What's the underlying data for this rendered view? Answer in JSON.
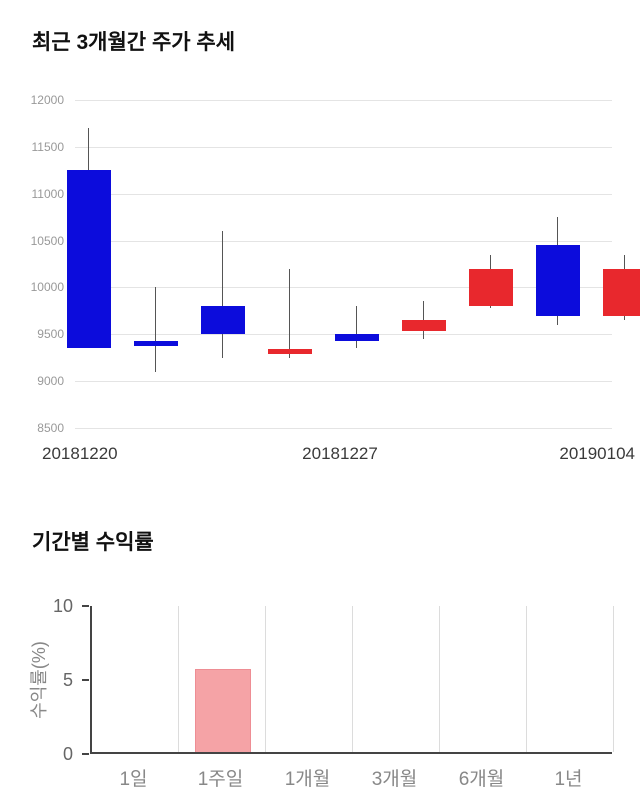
{
  "chart_data": [
    {
      "type": "candlestick",
      "title": "최근 3개월간 주가 추세",
      "ylim": [
        8500,
        12000
      ],
      "y_ticks": [
        8500,
        9000,
        9500,
        10000,
        10500,
        11000,
        11500,
        12000
      ],
      "x_tick_labels": [
        "20181220",
        "20181227",
        "20190104"
      ],
      "up_color": "#e8282d",
      "down_color": "#0c0cdc",
      "wick_color": "#555555",
      "grid": "horizontal",
      "candles": [
        {
          "open": 11250,
          "high": 11700,
          "low": 9350,
          "close": 9350
        },
        {
          "open": 9430,
          "high": 10000,
          "low": 9100,
          "close": 9380
        },
        {
          "open": 9800,
          "high": 10600,
          "low": 9250,
          "close": 9500
        },
        {
          "open": 9290,
          "high": 10200,
          "low": 9250,
          "close": 9340
        },
        {
          "open": 9500,
          "high": 9800,
          "low": 9350,
          "close": 9430
        },
        {
          "open": 9530,
          "high": 9850,
          "low": 9450,
          "close": 9650
        },
        {
          "open": 9800,
          "high": 10350,
          "low": 9780,
          "close": 10200
        },
        {
          "open": 10450,
          "high": 10750,
          "low": 9600,
          "close": 9700
        },
        {
          "open": 9690,
          "high": 10350,
          "low": 9650,
          "close": 10200
        }
      ]
    },
    {
      "type": "bar",
      "title": "기간별 수익률",
      "ylabel": "수익률(%)",
      "categories": [
        "1일",
        "1주일",
        "1개월",
        "3개월",
        "6개월",
        "1년"
      ],
      "values": [
        0,
        5.6,
        0,
        0,
        0,
        0
      ],
      "ylim": [
        0,
        10
      ],
      "y_ticks": [
        0,
        5,
        10
      ],
      "bar_color": "#f5a3a6",
      "bar_border_color": "#ee8d94",
      "axis_color": "#444444",
      "grid": "vertical",
      "legend": "none"
    }
  ]
}
